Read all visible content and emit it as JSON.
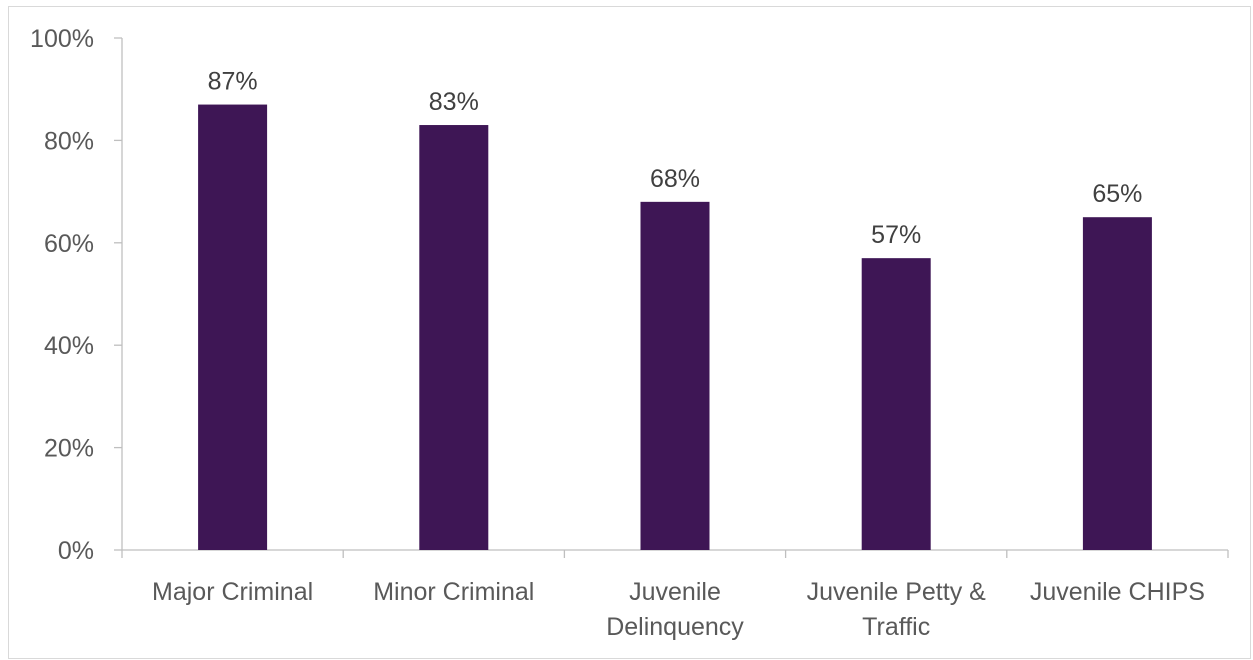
{
  "chart_data": {
    "type": "bar",
    "title": "",
    "xlabel": "",
    "ylabel": "",
    "categories": [
      [
        "Major Criminal"
      ],
      [
        "Minor Criminal"
      ],
      [
        "Juvenile",
        "Delinquency"
      ],
      [
        "Juvenile Petty &",
        "Traffic"
      ],
      [
        "Juvenile CHIPS"
      ]
    ],
    "values": [
      0.87,
      0.83,
      0.68,
      0.57,
      0.65
    ],
    "data_labels": [
      "87%",
      "83%",
      "68%",
      "57%",
      "65%"
    ],
    "ylim": [
      0,
      1
    ],
    "yticks": [
      0,
      0.2,
      0.4,
      0.6,
      0.8,
      1.0
    ],
    "ytick_labels": [
      "0%",
      "20%",
      "40%",
      "60%",
      "80%",
      "100%"
    ],
    "grid": false,
    "legend": "none",
    "colors": {
      "bar": "#3e1655",
      "axis": "#bfbfbf",
      "tick_text": "#595959",
      "label_text": "#404040"
    }
  }
}
